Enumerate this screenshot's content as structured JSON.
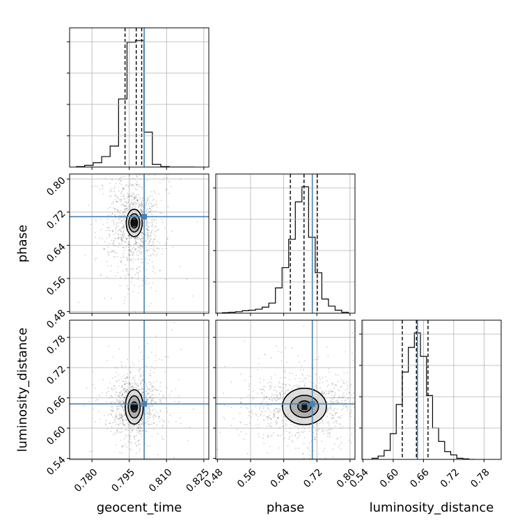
{
  "chart_data": {
    "type": "corner",
    "parameters": [
      "geocent_time",
      "phase",
      "luminosity_distance"
    ],
    "truths": [
      0.801,
      0.709,
      0.648
    ],
    "truth_color": "#4682b4",
    "ranges": [
      [
        0.771,
        0.827
      ],
      [
        0.476,
        0.812
      ],
      [
        0.538,
        0.814
      ]
    ],
    "ticks": [
      [
        0.78,
        0.795,
        0.81,
        0.825
      ],
      [
        0.48,
        0.56,
        0.64,
        0.72,
        0.8
      ],
      [
        0.54,
        0.6,
        0.66,
        0.72,
        0.78
      ]
    ],
    "tick_labels": [
      [
        "0.780",
        "0.795",
        "0.810",
        "0.825"
      ],
      [
        "0.48",
        "0.56",
        "0.64",
        "0.72",
        "0.80"
      ],
      [
        "0.54",
        "0.60",
        "0.66",
        "0.72",
        "0.78"
      ]
    ],
    "histograms": [
      {
        "bin_edges": [
          0.7737,
          0.7771,
          0.7805,
          0.7839,
          0.7873,
          0.7907,
          0.7941,
          0.7975,
          0.8009,
          0.8043,
          0.8077,
          0.8111,
          0.8145,
          0.8179,
          0.8213
        ],
        "counts": [
          0.5,
          2,
          5,
          12,
          24,
          78,
          143,
          145,
          40,
          3,
          0.5,
          0,
          0,
          0
        ],
        "quantiles": [
          0.7933,
          0.7978,
          0.8
        ]
      },
      {
        "bin_edges": [
          0.476,
          0.492,
          0.508,
          0.524,
          0.54,
          0.556,
          0.572,
          0.588,
          0.604,
          0.62,
          0.636,
          0.652,
          0.668,
          0.684,
          0.7,
          0.716,
          0.732,
          0.748,
          0.764,
          0.78,
          0.796
        ],
        "counts": [
          0,
          0.5,
          1,
          1.5,
          2.5,
          3,
          4,
          6,
          10,
          25,
          45,
          73,
          110,
          125,
          75,
          40,
          14,
          7,
          3,
          1
        ],
        "quantiles": [
          0.656,
          0.689,
          0.721
        ]
      },
      {
        "bin_edges": [
          0.558,
          0.57,
          0.582,
          0.594,
          0.606,
          0.618,
          0.63,
          0.642,
          0.654,
          0.666,
          0.678,
          0.69,
          0.702,
          0.714,
          0.726,
          0.738,
          0.75,
          0.762
        ],
        "counts": [
          1,
          3,
          8,
          23,
          49,
          78,
          100,
          113,
          92,
          57,
          28,
          16,
          7,
          4,
          1,
          0.5,
          0
        ],
        "quantiles": [
          0.618,
          0.646,
          0.669
        ]
      }
    ],
    "contour_panels": [
      {
        "x_param": "geocent_time",
        "y_param": "phase",
        "center": [
          0.797,
          0.694
        ],
        "levels": [
          {
            "sx": 0.0013,
            "sy": 0.012
          },
          {
            "sx": 0.0022,
            "sy": 0.022
          },
          {
            "sx": 0.0032,
            "sy": 0.033
          }
        ],
        "point_spread": [
          0.0048,
          0.055
        ]
      },
      {
        "x_param": "geocent_time",
        "y_param": "luminosity_distance",
        "center": [
          0.797,
          0.642
        ],
        "levels": [
          {
            "sx": 0.0013,
            "sy": 0.01
          },
          {
            "sx": 0.0024,
            "sy": 0.022
          },
          {
            "sx": 0.0036,
            "sy": 0.034
          }
        ],
        "point_spread": [
          0.0045,
          0.03
        ]
      },
      {
        "x_param": "phase",
        "y_param": "luminosity_distance",
        "center": [
          0.69,
          0.643
        ],
        "levels": [
          {
            "sx": 0.016,
            "sy": 0.011
          },
          {
            "sx": 0.034,
            "sy": 0.022
          },
          {
            "sx": 0.053,
            "sy": 0.036
          }
        ],
        "point_spread": [
          0.062,
          0.03
        ]
      }
    ]
  }
}
